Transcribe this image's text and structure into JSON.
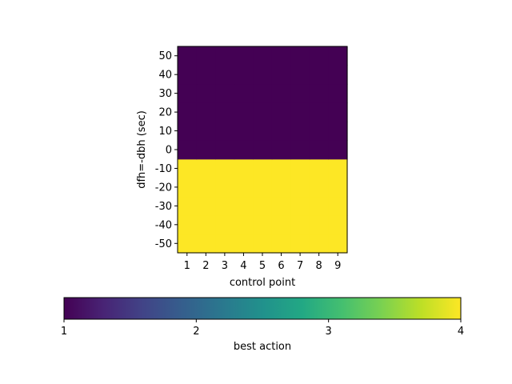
{
  "chart_data": {
    "type": "heatmap",
    "title": "",
    "xlabel": "control point",
    "ylabel": "dfh=-dbh (sec)",
    "x": [
      1,
      2,
      3,
      4,
      5,
      6,
      7,
      8,
      9
    ],
    "x_ticks": [
      "1",
      "2",
      "3",
      "4",
      "5",
      "6",
      "7",
      "8",
      "9"
    ],
    "xlim": [
      0.5,
      9.5
    ],
    "y": [
      -50,
      -40,
      -30,
      -20,
      -10,
      0,
      10,
      20,
      30,
      40,
      50
    ],
    "y_ticks": [
      "-50",
      "-40",
      "-30",
      "-20",
      "-10",
      "0",
      "10",
      "20",
      "30",
      "40",
      "50"
    ],
    "ylim": [
      -55,
      55
    ],
    "values_by_y": [
      4,
      4,
      4,
      4,
      4,
      1,
      1,
      1,
      1,
      1,
      1
    ],
    "colorbar": {
      "label": "best action",
      "range": [
        1,
        4
      ],
      "ticks": [
        "1",
        "2",
        "3",
        "4"
      ],
      "colormap": "viridis",
      "orientation": "horizontal"
    },
    "grid": false
  }
}
